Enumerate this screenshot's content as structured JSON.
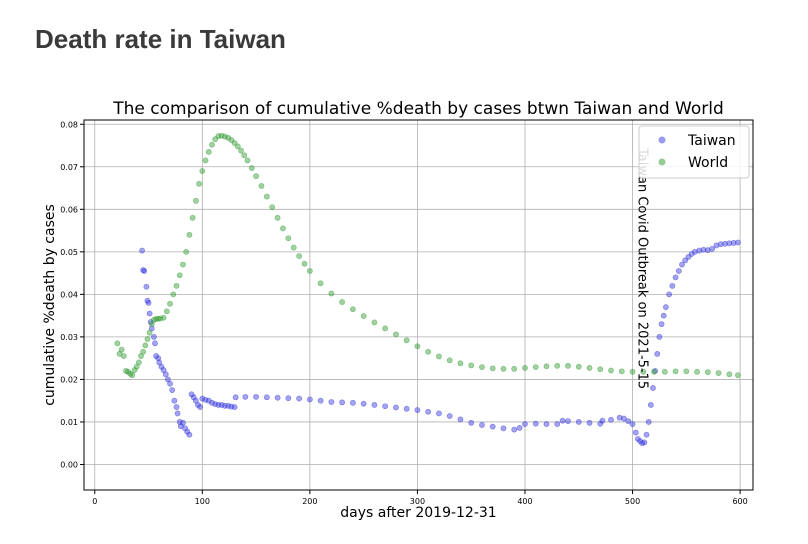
{
  "page": {
    "heading": "Death rate in Taiwan"
  },
  "chart_data": {
    "type": "scatter",
    "title": "The comparison of cumulative %death by cases btwn Taiwan and World",
    "xlabel": "days after 2019-12-31",
    "ylabel": "cumulative %death by cases",
    "xlim": [
      -10,
      612
    ],
    "ylim": [
      -0.006,
      0.081
    ],
    "xticks": [
      0,
      100,
      200,
      300,
      400,
      500,
      600
    ],
    "yticks": [
      0.0,
      0.01,
      0.02,
      0.03,
      0.04,
      0.05,
      0.06,
      0.07,
      0.08
    ],
    "ytick_labels": [
      "0.00",
      "0.01",
      "0.02",
      "0.03",
      "0.04",
      "0.05",
      "0.06",
      "0.07",
      "0.08"
    ],
    "grid": true,
    "legend_position": "top-right",
    "series": [
      {
        "name": "Taiwan",
        "color": "#3333dd",
        "points": [
          [
            44,
            0.0503
          ],
          [
            45,
            0.0457
          ],
          [
            46,
            0.0455
          ],
          [
            48,
            0.0418
          ],
          [
            49,
            0.0385
          ],
          [
            50,
            0.038
          ],
          [
            51,
            0.0355
          ],
          [
            52,
            0.0335
          ],
          [
            53,
            0.032
          ],
          [
            55,
            0.03
          ],
          [
            56,
            0.0285
          ],
          [
            57,
            0.0255
          ],
          [
            59,
            0.025
          ],
          [
            60,
            0.024
          ],
          [
            62,
            0.023
          ],
          [
            64,
            0.0222
          ],
          [
            66,
            0.0212
          ],
          [
            68,
            0.02
          ],
          [
            70,
            0.019
          ],
          [
            72,
            0.0175
          ],
          [
            74,
            0.015
          ],
          [
            76,
            0.0135
          ],
          [
            77,
            0.012
          ],
          [
            79,
            0.01
          ],
          [
            80,
            0.009
          ],
          [
            82,
            0.0098
          ],
          [
            84,
            0.0085
          ],
          [
            86,
            0.0077
          ],
          [
            88,
            0.007
          ],
          [
            90,
            0.0165
          ],
          [
            92,
            0.0158
          ],
          [
            94,
            0.015
          ],
          [
            96,
            0.014
          ],
          [
            98,
            0.0135
          ],
          [
            100,
            0.0155
          ],
          [
            103,
            0.0152
          ],
          [
            106,
            0.015
          ],
          [
            109,
            0.0145
          ],
          [
            112,
            0.0142
          ],
          [
            115,
            0.014
          ],
          [
            118,
            0.014
          ],
          [
            121,
            0.0138
          ],
          [
            124,
            0.0138
          ],
          [
            127,
            0.0136
          ],
          [
            130,
            0.0135
          ],
          [
            131,
            0.0158
          ],
          [
            140,
            0.0159
          ],
          [
            150,
            0.0159
          ],
          [
            160,
            0.0158
          ],
          [
            170,
            0.0157
          ],
          [
            180,
            0.0156
          ],
          [
            190,
            0.0155
          ],
          [
            200,
            0.0153
          ],
          [
            210,
            0.015
          ],
          [
            220,
            0.0147
          ],
          [
            230,
            0.0146
          ],
          [
            240,
            0.0145
          ],
          [
            250,
            0.0143
          ],
          [
            260,
            0.014
          ],
          [
            270,
            0.0137
          ],
          [
            280,
            0.0134
          ],
          [
            290,
            0.0131
          ],
          [
            300,
            0.0128
          ],
          [
            310,
            0.0124
          ],
          [
            320,
            0.012
          ],
          [
            330,
            0.0114
          ],
          [
            340,
            0.0106
          ],
          [
            350,
            0.0098
          ],
          [
            360,
            0.0093
          ],
          [
            370,
            0.0089
          ],
          [
            380,
            0.0085
          ],
          [
            390,
            0.0082
          ],
          [
            395,
            0.0086
          ],
          [
            400,
            0.0095
          ],
          [
            410,
            0.0096
          ],
          [
            420,
            0.0095
          ],
          [
            430,
            0.0095
          ],
          [
            435,
            0.0103
          ],
          [
            440,
            0.0102
          ],
          [
            450,
            0.01
          ],
          [
            460,
            0.0098
          ],
          [
            470,
            0.0096
          ],
          [
            472,
            0.0103
          ],
          [
            480,
            0.0105
          ],
          [
            488,
            0.011
          ],
          [
            492,
            0.0108
          ],
          [
            496,
            0.0102
          ],
          [
            500,
            0.0095
          ],
          [
            503,
            0.0075
          ],
          [
            505,
            0.006
          ],
          [
            507,
            0.0055
          ],
          [
            509,
            0.005
          ],
          [
            511,
            0.0052
          ],
          [
            513,
            0.007
          ],
          [
            515,
            0.01
          ],
          [
            517,
            0.014
          ],
          [
            519,
            0.018
          ],
          [
            521,
            0.022
          ],
          [
            523,
            0.026
          ],
          [
            525,
            0.03
          ],
          [
            527,
            0.033
          ],
          [
            529,
            0.035
          ],
          [
            531,
            0.037
          ],
          [
            534,
            0.04
          ],
          [
            537,
            0.042
          ],
          [
            540,
            0.044
          ],
          [
            543,
            0.0455
          ],
          [
            546,
            0.047
          ],
          [
            549,
            0.048
          ],
          [
            552,
            0.0488
          ],
          [
            555,
            0.0495
          ],
          [
            558,
            0.05
          ],
          [
            562,
            0.0503
          ],
          [
            566,
            0.0505
          ],
          [
            570,
            0.0504
          ],
          [
            574,
            0.0507
          ],
          [
            578,
            0.0515
          ],
          [
            582,
            0.0518
          ],
          [
            586,
            0.0519
          ],
          [
            590,
            0.052
          ],
          [
            594,
            0.0521
          ],
          [
            598,
            0.0522
          ]
        ]
      },
      {
        "name": "World",
        "color": "#2e9a2e",
        "points": [
          [
            21,
            0.0285
          ],
          [
            23,
            0.026
          ],
          [
            25,
            0.027
          ],
          [
            27,
            0.0255
          ],
          [
            29,
            0.022
          ],
          [
            31,
            0.0218
          ],
          [
            33,
            0.0213
          ],
          [
            35,
            0.021
          ],
          [
            37,
            0.0222
          ],
          [
            39,
            0.023
          ],
          [
            41,
            0.024
          ],
          [
            43,
            0.0255
          ],
          [
            45,
            0.0265
          ],
          [
            47,
            0.028
          ],
          [
            49,
            0.0295
          ],
          [
            51,
            0.031
          ],
          [
            53,
            0.033
          ],
          [
            55,
            0.034
          ],
          [
            57,
            0.0342
          ],
          [
            59,
            0.0343
          ],
          [
            61,
            0.0343
          ],
          [
            64,
            0.0345
          ],
          [
            67,
            0.036
          ],
          [
            70,
            0.0378
          ],
          [
            73,
            0.04
          ],
          [
            76,
            0.042
          ],
          [
            79,
            0.0445
          ],
          [
            82,
            0.047
          ],
          [
            85,
            0.05
          ],
          [
            88,
            0.054
          ],
          [
            91,
            0.058
          ],
          [
            94,
            0.062
          ],
          [
            97,
            0.066
          ],
          [
            100,
            0.069
          ],
          [
            103,
            0.0715
          ],
          [
            106,
            0.0735
          ],
          [
            109,
            0.0752
          ],
          [
            112,
            0.0765
          ],
          [
            115,
            0.0772
          ],
          [
            118,
            0.0773
          ],
          [
            121,
            0.0771
          ],
          [
            124,
            0.0768
          ],
          [
            127,
            0.0763
          ],
          [
            130,
            0.0756
          ],
          [
            133,
            0.0748
          ],
          [
            136,
            0.0738
          ],
          [
            139,
            0.0727
          ],
          [
            142,
            0.0715
          ],
          [
            146,
            0.0697
          ],
          [
            150,
            0.0678
          ],
          [
            155,
            0.0655
          ],
          [
            160,
            0.063
          ],
          [
            165,
            0.0605
          ],
          [
            170,
            0.058
          ],
          [
            175,
            0.0555
          ],
          [
            180,
            0.0532
          ],
          [
            185,
            0.051
          ],
          [
            190,
            0.049
          ],
          [
            195,
            0.0472
          ],
          [
            200,
            0.0455
          ],
          [
            210,
            0.0426
          ],
          [
            220,
            0.0402
          ],
          [
            230,
            0.0382
          ],
          [
            240,
            0.0365
          ],
          [
            250,
            0.0349
          ],
          [
            260,
            0.0334
          ],
          [
            270,
            0.032
          ],
          [
            280,
            0.0306
          ],
          [
            290,
            0.0292
          ],
          [
            300,
            0.0278
          ],
          [
            310,
            0.0265
          ],
          [
            320,
            0.0254
          ],
          [
            330,
            0.0245
          ],
          [
            340,
            0.0238
          ],
          [
            350,
            0.0233
          ],
          [
            360,
            0.0229
          ],
          [
            370,
            0.0226
          ],
          [
            380,
            0.0225
          ],
          [
            390,
            0.0225
          ],
          [
            400,
            0.0227
          ],
          [
            410,
            0.0229
          ],
          [
            420,
            0.0231
          ],
          [
            430,
            0.0232
          ],
          [
            440,
            0.0232
          ],
          [
            450,
            0.023
          ],
          [
            460,
            0.0227
          ],
          [
            470,
            0.0224
          ],
          [
            480,
            0.0221
          ],
          [
            490,
            0.0219
          ],
          [
            500,
            0.0218
          ],
          [
            510,
            0.0218
          ],
          [
            520,
            0.0218
          ],
          [
            530,
            0.0218
          ],
          [
            540,
            0.0219
          ],
          [
            550,
            0.0219
          ],
          [
            560,
            0.0218
          ],
          [
            570,
            0.0217
          ],
          [
            580,
            0.0215
          ],
          [
            590,
            0.0212
          ],
          [
            598,
            0.021
          ]
        ]
      }
    ],
    "annotation": {
      "text": "Taiwan Covid Outbreak on 2021-5-15",
      "x": 501,
      "orientation": "vertical"
    }
  }
}
